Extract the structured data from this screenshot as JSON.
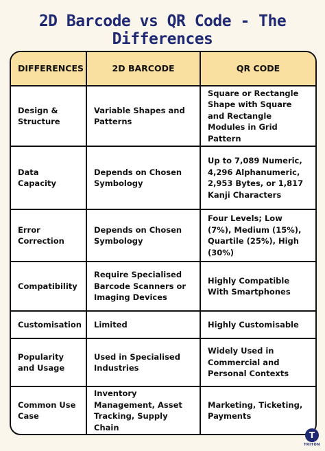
{
  "title": "2D Barcode vs QR Code - The Differences",
  "header": [
    "DIFFERENCES",
    "2D BARCODE",
    "QR CODE"
  ],
  "rows": [
    {
      "label": "Design & Structure",
      "barcode": "Variable Shapes and Patterns",
      "qr": "Square or Rectangle Shape with Square and Rectangle Modules in Grid Pattern"
    },
    {
      "label": "Data Capacity",
      "barcode": "Depends on Chosen Symbology",
      "qr": "Up to 7,089 Numeric, 4,296 Alphanumeric, 2,953 Bytes, or 1,817 Kanji Characters"
    },
    {
      "label": "Error Correction",
      "barcode": "Depends on Chosen Symbology",
      "qr": "Four Levels; Low (7%), Medium (15%), Quartile (25%), High (30%)"
    },
    {
      "label": "Compatibility",
      "barcode": "Require Specialised Barcode Scanners or Imaging Devices",
      "qr": "Highly Compatible With Smartphones"
    },
    {
      "label": "Customisation",
      "barcode": "Limited",
      "qr": "Highly Customisable"
    },
    {
      "label": "Popularity and Usage",
      "barcode": "Used in Specialised Industries",
      "qr": "Widely Used in Commercial and Personal Contexts"
    },
    {
      "label": "Common Use Case",
      "barcode": "Inventory Management, Asset Tracking, Supply Chain",
      "qr": "Marketing, Ticketing, Payments"
    }
  ],
  "logo": {
    "letter": "T",
    "text": "TRITON"
  },
  "colors": {
    "title": "#1f2a73",
    "header_bg": "#f9dfa0",
    "page_bg": "#fbf6ec"
  }
}
